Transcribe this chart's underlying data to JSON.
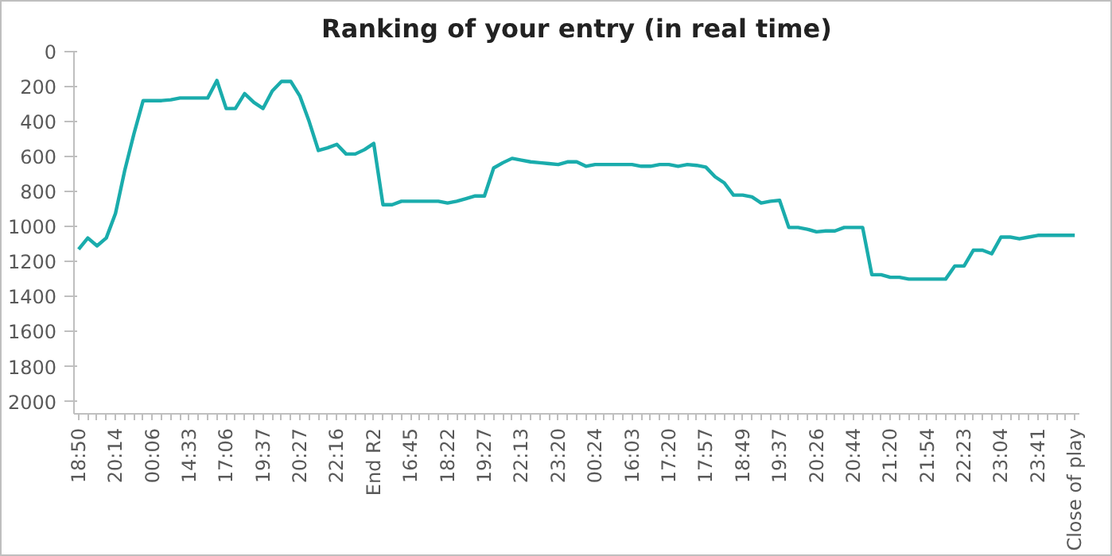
{
  "chart_data": {
    "type": "line",
    "title": "Ranking of your entry (in real time)",
    "categories": [
      "18:50",
      null,
      null,
      null,
      "20:14",
      null,
      null,
      null,
      "00:06",
      null,
      null,
      null,
      "14:33",
      null,
      null,
      null,
      "17:06",
      null,
      null,
      null,
      "19:37",
      null,
      null,
      null,
      "20:27",
      null,
      null,
      null,
      "22:16",
      null,
      null,
      null,
      "End R2",
      null,
      null,
      null,
      "16:45",
      null,
      null,
      null,
      "18:22",
      null,
      null,
      null,
      "19:27",
      null,
      null,
      null,
      "22:13",
      null,
      null,
      null,
      "23:20",
      null,
      null,
      null,
      "00:24",
      null,
      null,
      null,
      "16:03",
      null,
      null,
      null,
      "17:20",
      null,
      null,
      null,
      "17:57",
      null,
      null,
      null,
      "18:49",
      null,
      null,
      null,
      "19:37",
      null,
      null,
      null,
      "20:26",
      null,
      null,
      null,
      "20:44",
      null,
      null,
      null,
      "21:20",
      null,
      null,
      null,
      "21:54",
      null,
      null,
      null,
      "22:23",
      null,
      null,
      null,
      "23:04",
      null,
      null,
      null,
      "23:41",
      null,
      null,
      null,
      "Close of play"
    ],
    "series": [
      {
        "color": "#1aacac",
        "values": [
          1130,
          1065,
          1110,
          1065,
          925,
          680,
          470,
          280,
          280,
          280,
          275,
          265,
          265,
          265,
          265,
          165,
          325,
          325,
          240,
          290,
          325,
          225,
          170,
          170,
          255,
          400,
          565,
          550,
          530,
          585,
          585,
          560,
          525,
          875,
          875,
          855,
          855,
          855,
          855,
          855,
          865,
          855,
          840,
          825,
          825,
          665,
          635,
          610,
          620,
          630,
          635,
          640,
          645,
          630,
          630,
          655,
          645,
          645,
          645,
          645,
          645,
          655,
          655,
          645,
          645,
          655,
          645,
          650,
          660,
          715,
          750,
          820,
          820,
          830,
          865,
          855,
          850,
          1005,
          1005,
          1015,
          1030,
          1025,
          1025,
          1005,
          1005,
          1005,
          1275,
          1275,
          1290,
          1290,
          1300,
          1300,
          1300,
          1300,
          1300,
          1225,
          1225,
          1135,
          1135,
          1155,
          1060,
          1060,
          1070,
          1060,
          1050,
          1050,
          1050,
          1050,
          1050
        ]
      }
    ],
    "ylim": [
      2070,
      0
    ],
    "yticks": [
      0,
      200,
      400,
      600,
      800,
      1000,
      1200,
      1400,
      1600,
      1800,
      2000
    ],
    "grid": false,
    "marker": "none",
    "line_style": "solid"
  }
}
